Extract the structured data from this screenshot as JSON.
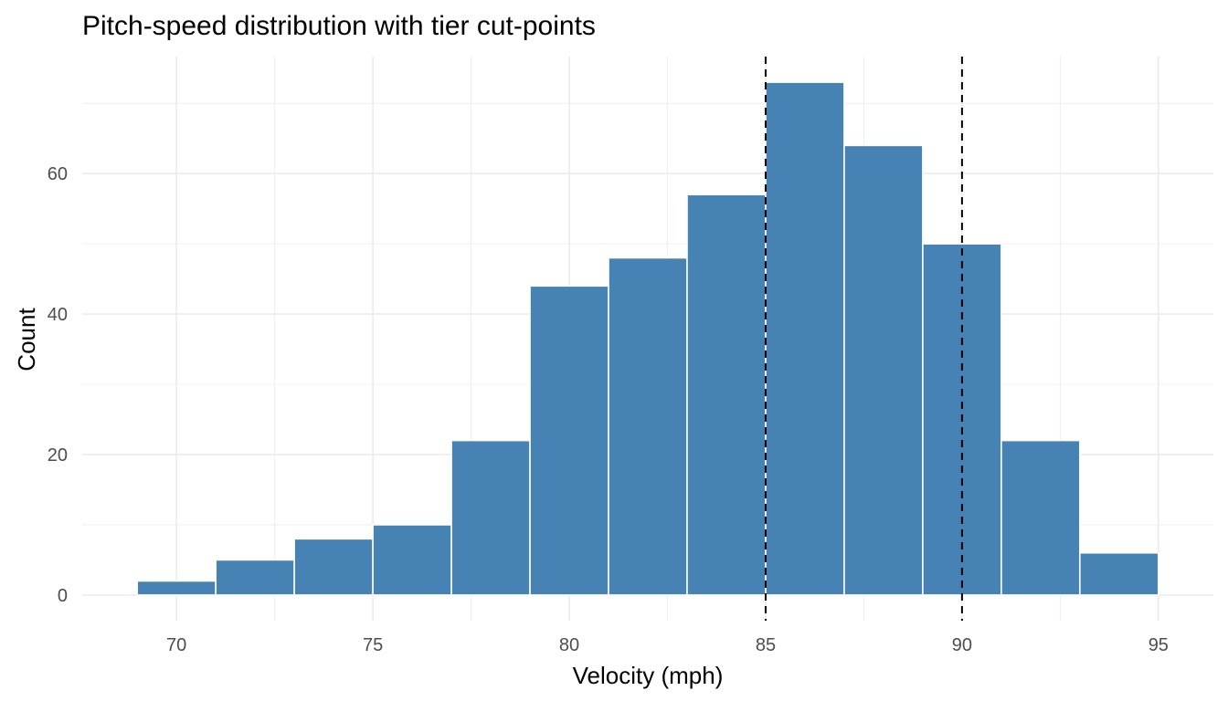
{
  "chart_data": {
    "type": "bar",
    "title": "Pitch-speed distribution with tier cut-points",
    "xlabel": "Velocity (mph)",
    "ylabel": "Count",
    "bins": [
      {
        "x0": 69,
        "x1": 71,
        "count": 2
      },
      {
        "x0": 71,
        "x1": 73,
        "count": 5
      },
      {
        "x0": 73,
        "x1": 75,
        "count": 8
      },
      {
        "x0": 75,
        "x1": 77,
        "count": 10
      },
      {
        "x0": 77,
        "x1": 79,
        "count": 22
      },
      {
        "x0": 79,
        "x1": 81,
        "count": 44
      },
      {
        "x0": 81,
        "x1": 83,
        "count": 48
      },
      {
        "x0": 83,
        "x1": 85,
        "count": 57
      },
      {
        "x0": 85,
        "x1": 87,
        "count": 73
      },
      {
        "x0": 87,
        "x1": 89,
        "count": 64
      },
      {
        "x0": 89,
        "x1": 91,
        "count": 50
      },
      {
        "x0": 91,
        "x1": 93,
        "count": 22
      },
      {
        "x0": 93,
        "x1": 95,
        "count": 6
      }
    ],
    "cut_points": [
      85,
      90
    ],
    "xlim": [
      67.6,
      96.4
    ],
    "ylim": [
      -3.65,
      76.65
    ],
    "x_ticks": [
      70,
      75,
      80,
      85,
      90,
      95
    ],
    "y_ticks": [
      0,
      20,
      40,
      60
    ],
    "grid": true,
    "bar_color": "#4682B4",
    "bar_border_color": "#ffffff",
    "cut_line_color": "#000000",
    "grid_color": "#EBEBEB"
  }
}
